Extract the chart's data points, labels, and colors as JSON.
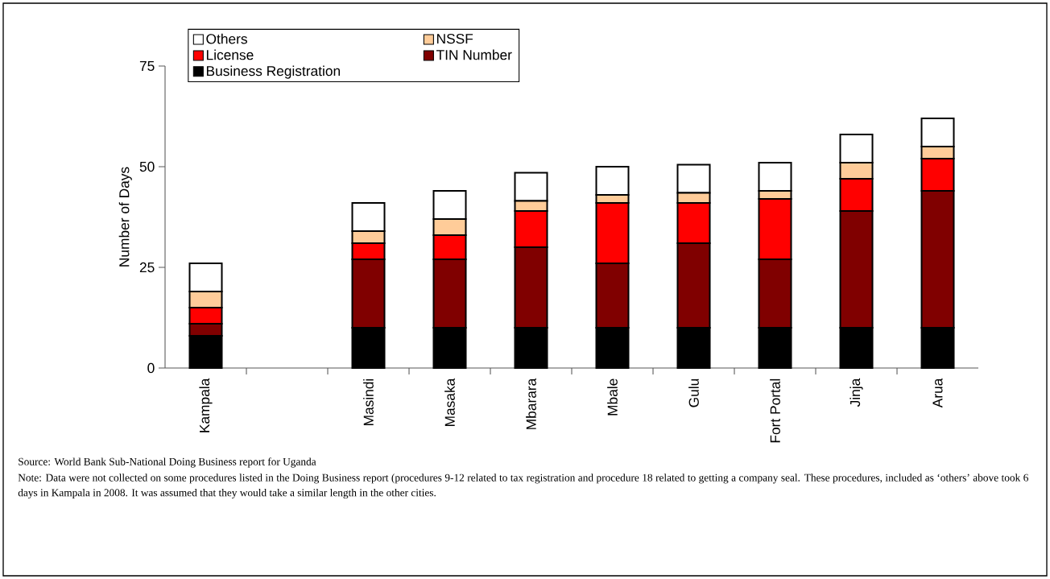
{
  "chart_data": {
    "type": "bar",
    "stacked": true,
    "ylabel": "Number of Days",
    "categories": [
      "Kampala",
      null,
      "Masindi",
      "Masaka",
      "Mbarara",
      "Mbale",
      "Gulu",
      "Fort Portal",
      "Jinja",
      "Arua"
    ],
    "series": [
      {
        "name": "Business Registration",
        "color": "#000000",
        "values": [
          8,
          null,
          10,
          10,
          10,
          10,
          10,
          10,
          10,
          10
        ]
      },
      {
        "name": "TIN Number",
        "color": "#800000",
        "values": [
          3,
          null,
          17,
          17,
          20,
          16,
          21,
          17,
          29,
          34
        ]
      },
      {
        "name": "License",
        "color": "#ff0000",
        "values": [
          4,
          null,
          4,
          6,
          9,
          15,
          10,
          15,
          8,
          8
        ]
      },
      {
        "name": "NSSF",
        "color": "#ffcc99",
        "values": [
          4,
          null,
          3,
          4,
          2.5,
          2,
          2.5,
          2,
          4,
          3
        ]
      },
      {
        "name": "Others",
        "color": "#ffffff",
        "values": [
          7,
          null,
          7,
          7,
          7,
          7,
          7,
          7,
          7,
          7
        ]
      }
    ],
    "ylim": [
      0,
      75
    ],
    "yticks": [
      0,
      25,
      50,
      75
    ],
    "legend": "top left",
    "grid": false,
    "annotations": [
      "Source:  World Bank Sub-National Doing Business report for Uganda",
      "Note: Data were not collected on some procedures listed in the Doing Business report (procedures 9-12 related to tax registration and procedure 18 related to getting a company seal.  These procedures, included as ‘others’ above took 6 days in Kampala in 2008.  It was assumed that they would take a similar length in the other cities."
    ]
  }
}
